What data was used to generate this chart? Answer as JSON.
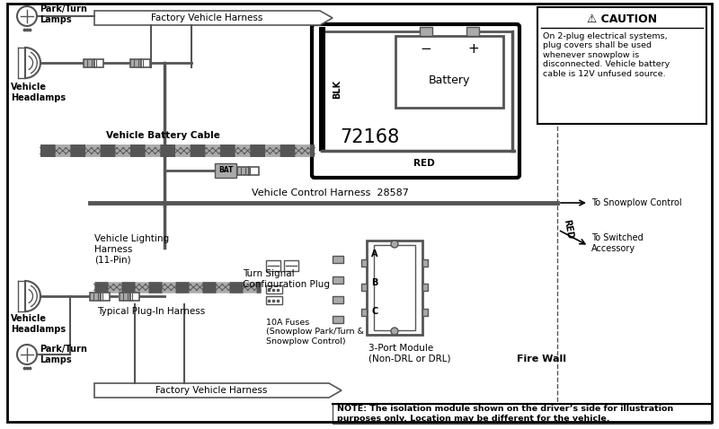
{
  "bg_color": "#ffffff",
  "black": "#000000",
  "dgray": "#555555",
  "lgray": "#aaaaaa",
  "mgray": "#888888",
  "caution_title": "⚠ CAUTION",
  "caution_text": "On 2-plug electrical systems,\nplug covers shall be used\nwhenever snowplow is\ndisconnected. Vehicle battery\ncable is 12V unfused source.",
  "note_text": "NOTE: The isolation module shown on the driver’s side for illustration\npurposes only. Location may be different for the vehicle.",
  "part_number": "72168",
  "harness_label": "Vehicle Control Harness  28587",
  "red_label": "RED",
  "blk_label": "BLK",
  "bat_label": "BAT",
  "battery_label": "Battery",
  "factory_harness_top": "Factory Vehicle Harness",
  "factory_harness_bot": "Factory Vehicle Harness",
  "park_turn_top": "Park/Turn\nLamps",
  "vehicle_headlamps_top": "Vehicle\nHeadlamps",
  "vehicle_battery_cable": "Vehicle Battery Cable",
  "vehicle_lighting_harness": "Vehicle Lighting\nHarness\n(11-Pin)",
  "typical_plug": "Typical Plug-In Harness",
  "turn_signal": "Turn Signal\nConfiguration Plug",
  "fuses_label": "10A Fuses\n(Snowplow Park/Turn &\nSnowplow Control)",
  "three_port": "3-Port Module\n(Non-DRL or DRL)",
  "fire_wall": "Fire Wall",
  "to_snowplow": "To Snowplow Control",
  "to_switched": "To Switched\nAccessory",
  "park_turn_bot": "Park/Turn\nLamps",
  "vehicle_headlamps_bot": "Vehicle\nHeadlamps"
}
